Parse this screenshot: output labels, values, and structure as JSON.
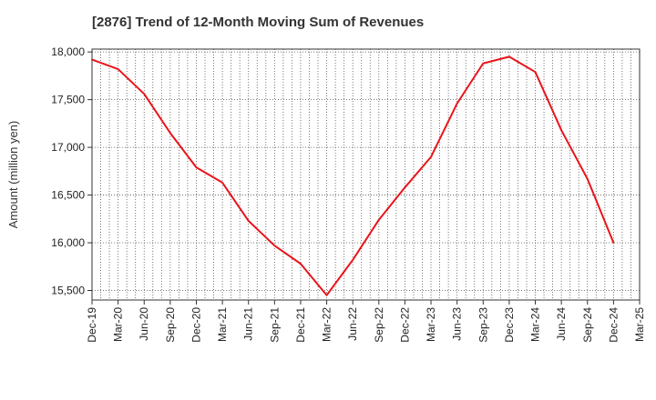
{
  "title": "[2876]  Trend of 12-Month Moving Sum of Revenues",
  "chart_data": {
    "type": "line",
    "title": "[2876]  Trend of 12-Month Moving Sum of Revenues",
    "ylabel": "Amount (million yen)",
    "xlabel": "",
    "ylim": [
      15400,
      18030
    ],
    "yticks": [
      15500,
      16000,
      16500,
      17000,
      17500,
      18000
    ],
    "ytick_labels": [
      "15,500",
      "16,000",
      "16,500",
      "17,000",
      "17,500",
      "18,000"
    ],
    "x_tick_labels": [
      "Dec-19",
      "Mar-20",
      "Jun-20",
      "Sep-20",
      "Dec-20",
      "Mar-21",
      "Jun-21",
      "Sep-21",
      "Dec-21",
      "Mar-22",
      "Jun-22",
      "Sep-22",
      "Dec-22",
      "Mar-23",
      "Jun-23",
      "Sep-23",
      "Dec-23",
      "Mar-24",
      "Jun-24",
      "Sep-24",
      "Dec-24",
      "Mar-25"
    ],
    "grid": true,
    "series": [
      {
        "color": "#e8151b",
        "x": [
          "Dec-19",
          "Mar-20",
          "Jun-20",
          "Sep-20",
          "Dec-20",
          "Mar-21",
          "Jun-21",
          "Sep-21",
          "Dec-21",
          "Mar-22",
          "Jun-22",
          "Sep-22",
          "Dec-22",
          "Mar-23",
          "Jun-23",
          "Sep-23",
          "Dec-23",
          "Mar-24",
          "Jun-24",
          "Sep-24",
          "Dec-24"
        ],
        "values": [
          17920,
          17820,
          17560,
          17150,
          16790,
          16630,
          16230,
          15970,
          15780,
          15450,
          15820,
          16240,
          16580,
          16900,
          17460,
          17880,
          17950,
          17790,
          17180,
          16670,
          16000
        ]
      }
    ]
  }
}
